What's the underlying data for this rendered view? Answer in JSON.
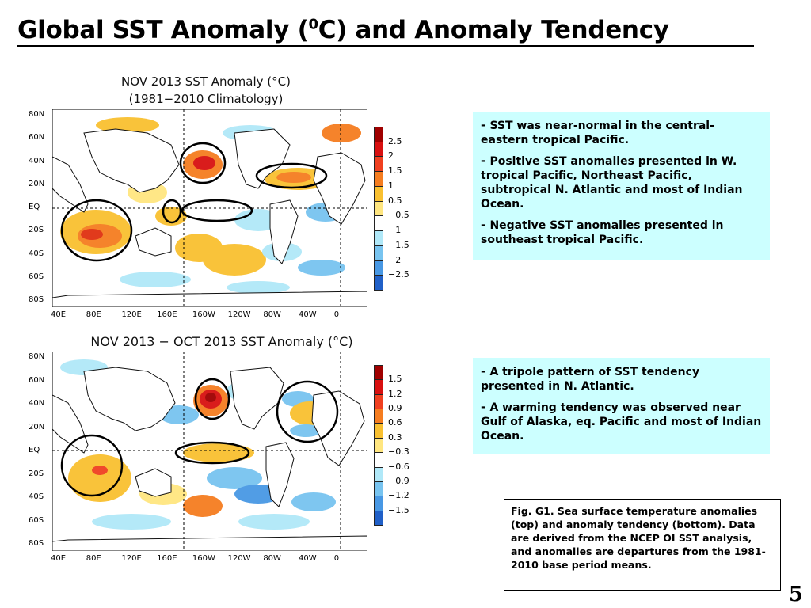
{
  "slide": {
    "title_main": "Global SST Anomaly (",
    "title_sup": "0",
    "title_rest": "C) and Anomaly Tendency",
    "page_number": "5"
  },
  "top_map": {
    "title_line1": "NOV 2013 SST Anomaly (°C)",
    "title_line2": "(1981−2010 Climatology)",
    "lat_labels": [
      "80N",
      "60N",
      "40N",
      "20N",
      "EQ",
      "20S",
      "40S",
      "60S",
      "80S"
    ],
    "lon_labels": [
      "40E",
      "80E",
      "120E",
      "160E",
      "160W",
      "120W",
      "80W",
      "40W",
      "0"
    ],
    "colorbar_labels": [
      "2.5",
      "2",
      "1.5",
      "1",
      "0.5",
      "−0.5",
      "−1",
      "−1.5",
      "−2",
      "−2.5"
    ],
    "colorbar_colors": [
      "#a00000",
      "#d81010",
      "#f04020",
      "#f57d20",
      "#f9c030",
      "#ffe680",
      "#ffffff",
      "#b0e8f8",
      "#78c4f0",
      "#4898e4",
      "#2060c8"
    ]
  },
  "bottom_map": {
    "title": "NOV 2013 − OCT 2013 SST Anomaly (°C)",
    "lat_labels": [
      "80N",
      "60N",
      "40N",
      "20N",
      "EQ",
      "20S",
      "40S",
      "60S",
      "80S"
    ],
    "lon_labels": [
      "40E",
      "80E",
      "120E",
      "160E",
      "160W",
      "120W",
      "80W",
      "40W",
      "0"
    ],
    "colorbar_labels": [
      "1.5",
      "1.2",
      "0.9",
      "0.6",
      "0.3",
      "−0.3",
      "−0.6",
      "−0.9",
      "−1.2",
      "−1.5"
    ],
    "colorbar_colors": [
      "#a00000",
      "#d81010",
      "#f04020",
      "#f57d20",
      "#f9c030",
      "#ffe680",
      "#ffffff",
      "#b0e8f8",
      "#78c4f0",
      "#4898e4",
      "#2060c8"
    ]
  },
  "notes_top": [
    "SST was near-normal in the central-eastern tropical Pacific.",
    "Positive SST anomalies presented in W. tropical Pacific,  Northeast Pacific, subtropical N. Atlantic and most of Indian Ocean.",
    "Negative SST anomalies presented in southeast tropical Pacific."
  ],
  "notes_bottom": [
    "A tripole pattern of SST tendency presented in N. Atlantic.",
    "A warming tendency was observed near Gulf of Alaska, eq. Pacific and most of Indian Ocean."
  ],
  "caption": "Fig. G1. Sea surface temperature anomalies (top) and anomaly tendency (bottom). Data are derived from the NCEP OI SST analysis, and anomalies are departures from the 1981-2010 base period means."
}
